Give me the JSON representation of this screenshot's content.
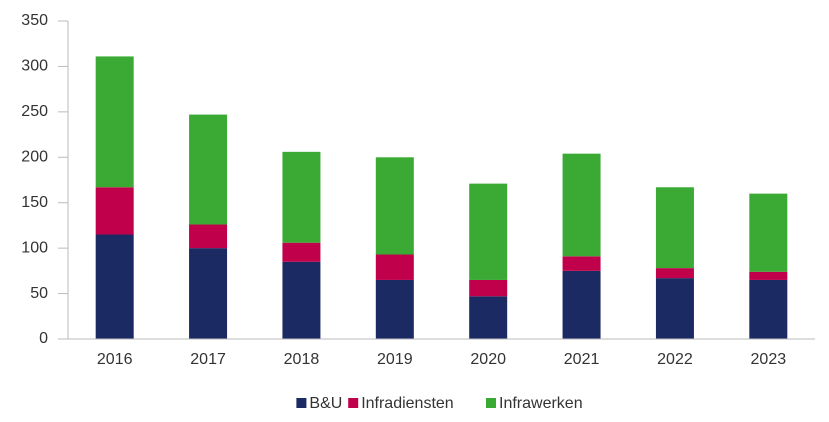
{
  "chart_data": {
    "type": "stacked_bar",
    "categories": [
      "2016",
      "2017",
      "2018",
      "2019",
      "2020",
      "2021",
      "2022",
      "2023"
    ],
    "series": [
      {
        "name": "B&U",
        "color": "#1b2a63",
        "values": [
          115,
          100,
          85,
          65,
          47,
          75,
          67,
          65
        ]
      },
      {
        "name": "Infradiensten",
        "color": "#c0004b",
        "values": [
          52,
          26,
          21,
          28,
          18,
          16,
          11,
          9
        ]
      },
      {
        "name": "Infrawerken",
        "color": "#3aaa35",
        "values": [
          144,
          121,
          100,
          107,
          106,
          113,
          89,
          86
        ]
      }
    ],
    "ylim": [
      0,
      350
    ],
    "yticks": [
      0,
      50,
      100,
      150,
      200,
      250,
      300,
      350
    ],
    "grid": false,
    "legend": "bottom"
  }
}
